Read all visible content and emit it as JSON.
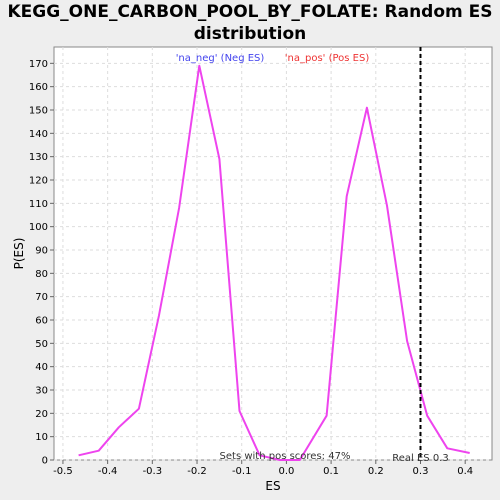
{
  "chart_data": {
    "type": "line",
    "title_line1": "KEGG_ONE_CARBON_POOL_BY_FOLATE: Random ES",
    "title_line2": "distribution",
    "xlabel": "ES",
    "ylabel": "P(ES)",
    "xlim": [
      -0.52,
      0.46
    ],
    "ylim": [
      0,
      177
    ],
    "xticks": [
      -0.5,
      -0.4,
      -0.3,
      -0.2,
      -0.1,
      0.0,
      0.1,
      0.2,
      0.3,
      0.4
    ],
    "xtick_labels": [
      "-0.5",
      "-0.4",
      "-0.3",
      "-0.2",
      "-0.1",
      "0.0",
      "0.1",
      "0.2",
      "0.3",
      "0.4"
    ],
    "yticks": [
      0,
      10,
      20,
      30,
      40,
      50,
      60,
      70,
      80,
      90,
      100,
      110,
      120,
      130,
      140,
      150,
      160,
      170
    ],
    "ytick_labels": [
      "0",
      "10",
      "20",
      "30",
      "40",
      "50",
      "60",
      "70",
      "80",
      "90",
      "100",
      "110",
      "120",
      "130",
      "140",
      "150",
      "160",
      "170"
    ],
    "grid": true,
    "series": [
      {
        "color": "#ee44ee",
        "points": [
          [
            -0.465,
            2
          ],
          [
            -0.42,
            4
          ],
          [
            -0.375,
            14
          ],
          [
            -0.33,
            22
          ],
          [
            -0.285,
            62
          ],
          [
            -0.24,
            108
          ],
          [
            -0.195,
            169
          ],
          [
            -0.15,
            129
          ],
          [
            -0.105,
            21
          ],
          [
            -0.06,
            2
          ],
          [
            -0.015,
            0
          ],
          [
            0.03,
            0
          ],
          [
            0.09,
            19
          ],
          [
            0.135,
            113
          ],
          [
            0.18,
            151
          ],
          [
            0.225,
            109
          ],
          [
            0.27,
            51
          ],
          [
            0.315,
            19
          ],
          [
            0.36,
            5
          ],
          [
            0.41,
            3
          ]
        ]
      }
    ],
    "legend": [
      {
        "label": "'na_neg' (Neg ES)",
        "color": "#4444ee"
      },
      {
        "label": "'na_pos' (Pos ES)",
        "color": "#ee3333"
      }
    ],
    "real_es": {
      "value": 0.3,
      "label": "Real ES 0.3"
    },
    "annotation": "Sets with pos scores: 47%"
  }
}
